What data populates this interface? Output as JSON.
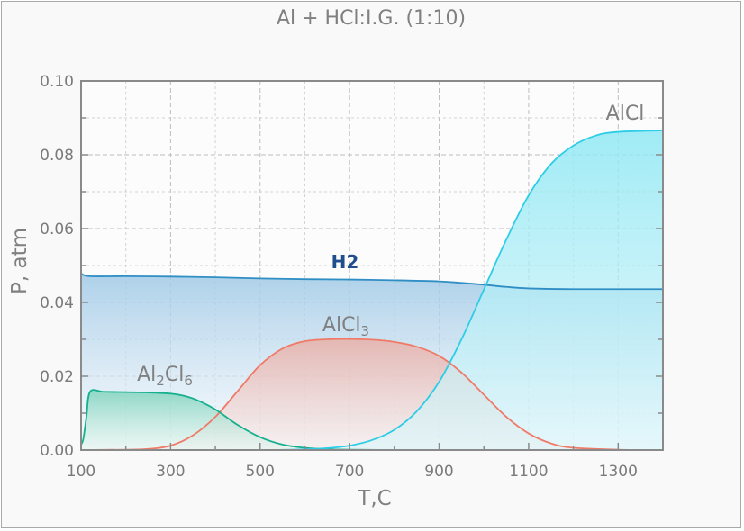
{
  "chart_data": {
    "type": "area",
    "title": "Al + HCl:I.G. (1:10)",
    "xlabel": "T,C",
    "ylabel": "P, atm",
    "xlim": [
      100,
      1400
    ],
    "ylim": [
      0,
      0.1
    ],
    "x_ticks": [
      "100",
      "300",
      "500",
      "700",
      "900",
      "1100",
      "1300"
    ],
    "y_ticks": [
      "0.00",
      "0.02",
      "0.04",
      "0.06",
      "0.08",
      "0.10"
    ],
    "grid": true,
    "series": [
      {
        "name": "H2",
        "color": "#2f8ec4",
        "fill_top": "#9fc9e6",
        "fill_bottom": "#f4f9fd",
        "x": [
          100,
          120,
          200,
          300,
          400,
          500,
          600,
          700,
          800,
          900,
          950,
          1000,
          1050,
          1100,
          1200,
          1300,
          1400
        ],
        "y": [
          0.0478,
          0.0471,
          0.0471,
          0.047,
          0.0468,
          0.0465,
          0.0463,
          0.0462,
          0.046,
          0.0457,
          0.0453,
          0.0448,
          0.0442,
          0.0438,
          0.0436,
          0.0436,
          0.0436
        ]
      },
      {
        "name": "AlCl3",
        "label_main": "AlCl",
        "label_sub": "3",
        "color": "#f07a68",
        "fill_top": "#e8b0a8",
        "fill_bottom": "#f6eaea",
        "x": [
          100,
          200,
          250,
          300,
          350,
          400,
          450,
          500,
          550,
          600,
          650,
          700,
          750,
          800,
          850,
          900,
          950,
          1000,
          1050,
          1100,
          1150,
          1200,
          1300,
          1400
        ],
        "y": [
          0,
          0.0001,
          0.0003,
          0.0012,
          0.004,
          0.009,
          0.016,
          0.023,
          0.0275,
          0.0295,
          0.03,
          0.0301,
          0.0299,
          0.0293,
          0.028,
          0.0255,
          0.021,
          0.015,
          0.009,
          0.0045,
          0.0018,
          0.0006,
          0.0001,
          0
        ]
      },
      {
        "name": "Al2Cl6",
        "label_parts": [
          "Al",
          "2",
          "Cl",
          "6"
        ],
        "color": "#17b08e",
        "fill_top": "#7fd3bd",
        "fill_bottom": "#e6f5ef",
        "x": [
          100,
          105,
          112,
          120,
          150,
          200,
          250,
          300,
          330,
          360,
          400,
          450,
          500,
          550,
          600,
          650,
          700,
          800,
          900
        ],
        "y": [
          0.0015,
          0.003,
          0.009,
          0.0158,
          0.0158,
          0.0157,
          0.0156,
          0.0153,
          0.0147,
          0.0135,
          0.011,
          0.0068,
          0.0035,
          0.0015,
          0.0006,
          0.0002,
          0.0001,
          0,
          0
        ]
      },
      {
        "name": "AlCl",
        "color": "#2ecde6",
        "fill_top": "#8fe8f4",
        "fill_bottom": "#d9f6fa",
        "x": [
          100,
          500,
          600,
          650,
          700,
          750,
          800,
          850,
          900,
          950,
          1000,
          1050,
          1100,
          1150,
          1200,
          1250,
          1300,
          1400
        ],
        "y": [
          0,
          0,
          0.0002,
          0.0005,
          0.0012,
          0.0027,
          0.0055,
          0.0105,
          0.0185,
          0.03,
          0.0435,
          0.057,
          0.069,
          0.0775,
          0.0825,
          0.0852,
          0.0862,
          0.0866
        ]
      }
    ]
  }
}
